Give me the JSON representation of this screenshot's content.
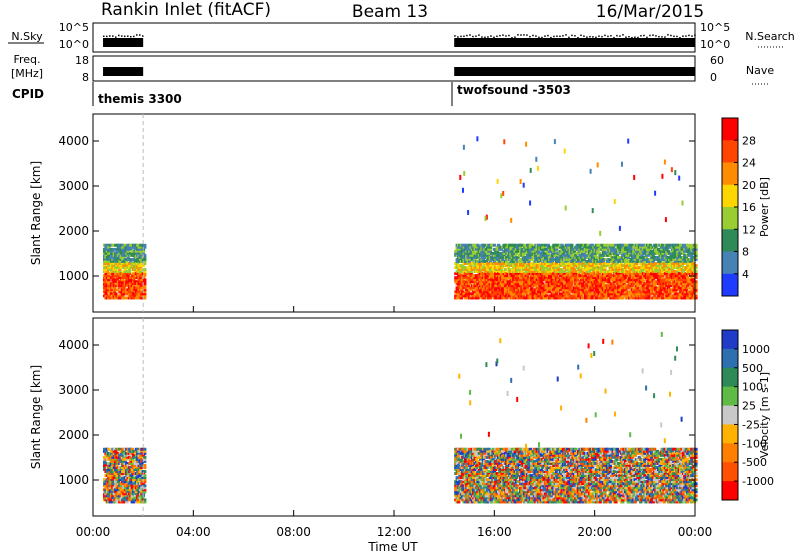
{
  "header": {
    "station": "Rankin Inlet (fitACF)",
    "beam": "Beam 13",
    "date": "16/Mar/2015"
  },
  "strip": {
    "nsky_label": "N.Sky",
    "nsky_ticks": [
      "10^5",
      "10^0"
    ],
    "nsearch_label": "N.Search",
    "freq_label_1": "Freq.",
    "freq_label_2": "[MHz]",
    "freq_ticks": [
      "18",
      "8"
    ],
    "nave_label": "Nave",
    "nave_ticks": [
      "60",
      "0"
    ],
    "right_nsky_ticks": [
      "10^5",
      "10^0"
    ],
    "cpid_label": "CPID",
    "cpid_entries": [
      "themis 3300",
      "twofsound -3503"
    ]
  },
  "chart_data": [
    {
      "type": "heatmap",
      "name": "power",
      "ylabel": "Slant Range [km]",
      "xlabel": "",
      "x_ticks": [
        "00:00",
        "04:00",
        "08:00",
        "12:00",
        "16:00",
        "20:00",
        "00:00"
      ],
      "y_ticks": [
        "1000",
        "2000",
        "3000",
        "4000"
      ],
      "xlim_hours": [
        0,
        24
      ],
      "ylim_km": [
        200,
        4600
      ],
      "colorbar_label": "Power [dB]",
      "colorbar_ticks": [
        "28",
        "24",
        "20",
        "16",
        "12",
        "8",
        "4"
      ],
      "colorbar_colors": [
        "#ff0000",
        "#ff4500",
        "#ff8c00",
        "#ffd700",
        "#9acd32",
        "#2e8b57",
        "#4682b4",
        "#1e3cff"
      ],
      "data_segments_hours": [
        [
          0.4,
          2.0
        ],
        [
          14.4,
          24.0
        ]
      ],
      "range_band_km": [
        500,
        1700
      ]
    },
    {
      "type": "heatmap",
      "name": "velocity",
      "ylabel": "Slant Range [km]",
      "xlabel": "Time UT",
      "x_ticks": [
        "00:00",
        "04:00",
        "08:00",
        "12:00",
        "16:00",
        "20:00",
        "00:00"
      ],
      "y_ticks": [
        "1000",
        "2000",
        "3000",
        "4000"
      ],
      "xlim_hours": [
        0,
        24
      ],
      "ylim_km": [
        200,
        4600
      ],
      "colorbar_label": "Velocity [m s-1]",
      "colorbar_ticks": [
        "1000",
        "500",
        "100",
        "25",
        "-25",
        "-100",
        "-500",
        "-1000"
      ],
      "colorbar_colors": [
        "#1e3cc8",
        "#2e6fb0",
        "#2e8b57",
        "#5dbb46",
        "#c8c8c8",
        "#ffb300",
        "#ff8000",
        "#ff5000",
        "#ff0000"
      ],
      "data_segments_hours": [
        [
          0.4,
          2.0
        ],
        [
          14.4,
          24.0
        ]
      ],
      "range_band_km": [
        500,
        1700
      ]
    }
  ]
}
